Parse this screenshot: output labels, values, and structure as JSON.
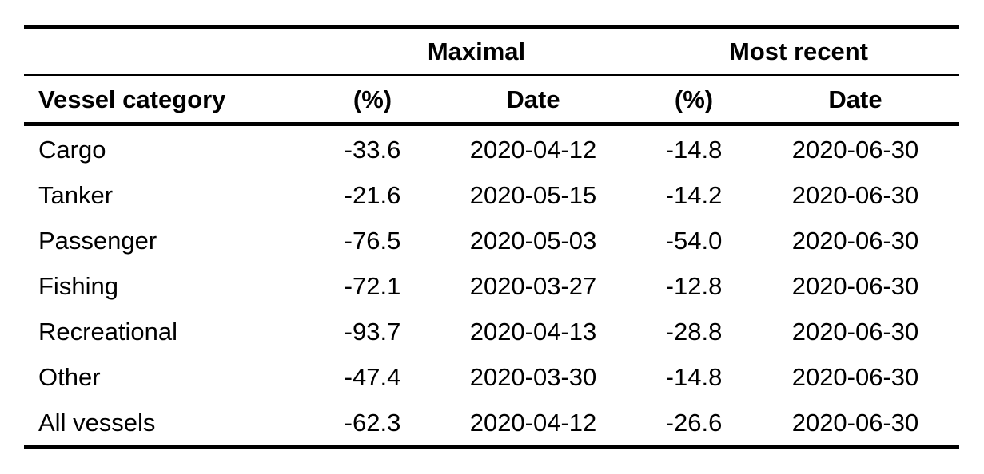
{
  "table": {
    "groups": {
      "maximal": "Maximal",
      "most_recent": "Most recent"
    },
    "headers": {
      "category": "Vessel category",
      "max_pct": "(%)",
      "max_date": "Date",
      "recent_pct": "(%)",
      "recent_date": "Date"
    },
    "rows": [
      {
        "category": "Cargo",
        "max_pct": "-33.6",
        "max_date": "2020-04-12",
        "recent_pct": "-14.8",
        "recent_date": "2020-06-30"
      },
      {
        "category": "Tanker",
        "max_pct": "-21.6",
        "max_date": "2020-05-15",
        "recent_pct": "-14.2",
        "recent_date": "2020-06-30"
      },
      {
        "category": "Passenger",
        "max_pct": "-76.5",
        "max_date": "2020-05-03",
        "recent_pct": "-54.0",
        "recent_date": "2020-06-30"
      },
      {
        "category": "Fishing",
        "max_pct": "-72.1",
        "max_date": "2020-03-27",
        "recent_pct": "-12.8",
        "recent_date": "2020-06-30"
      },
      {
        "category": "Recreational",
        "max_pct": "-93.7",
        "max_date": "2020-04-13",
        "recent_pct": "-28.8",
        "recent_date": "2020-06-30"
      },
      {
        "category": "Other",
        "max_pct": "-47.4",
        "max_date": "2020-03-30",
        "recent_pct": "-14.8",
        "recent_date": "2020-06-30"
      },
      {
        "category": "All vessels",
        "max_pct": "-62.3",
        "max_date": "2020-04-12",
        "recent_pct": "-26.6",
        "recent_date": "2020-06-30"
      }
    ]
  }
}
